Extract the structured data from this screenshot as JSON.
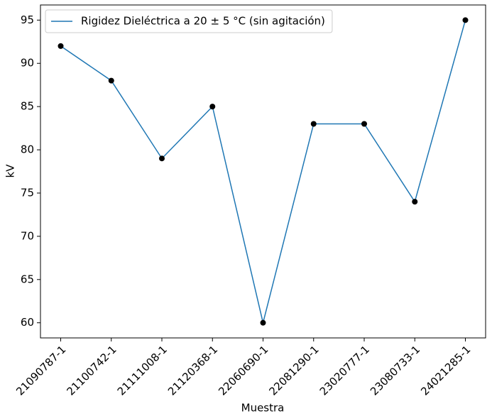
{
  "chart_data": {
    "type": "line",
    "xlabel": "Muestra",
    "ylabel": "kV",
    "categories": [
      "21090787-1",
      "21100742-1",
      "21111008-1",
      "21120368-1",
      "22060690-1",
      "22081290-1",
      "23020777-1",
      "23080733-1",
      "24021285-1"
    ],
    "series": [
      {
        "name": "Rigidez Dieléctrica a 20 ± 5 °C (sin agitación)",
        "color": "#1f77b4",
        "marker_color": "#000000",
        "values": [
          92,
          88,
          79,
          85,
          60,
          83,
          83,
          74,
          95
        ]
      }
    ],
    "ylim": [
      58.25,
      96.75
    ],
    "yticks": [
      60,
      65,
      70,
      75,
      80,
      85,
      90,
      95
    ],
    "grid": false,
    "legend": "upper left"
  }
}
